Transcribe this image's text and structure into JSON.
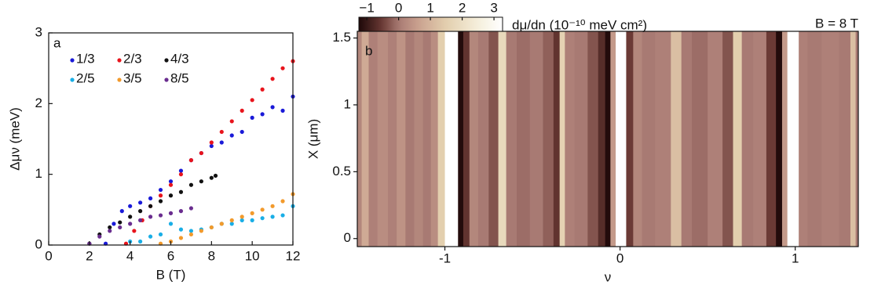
{
  "chart_data": [
    {
      "type": "scatter",
      "panel_label": "a",
      "x_label": "B (T)",
      "y_label": "Δμν (meV)",
      "xlim": [
        0,
        12
      ],
      "ylim": [
        0,
        3
      ],
      "xticks": [
        0,
        2,
        4,
        6,
        8,
        10,
        12
      ],
      "yticks": [
        0,
        1,
        2,
        3
      ],
      "series": [
        {
          "name": "1/3",
          "color": "#1a1ad8",
          "x": [
            2.8,
            3.2,
            3.6,
            4,
            4.5,
            5,
            5.5,
            6,
            6.5,
            7,
            7.5,
            8,
            8.5,
            9,
            9.5,
            10,
            10.5,
            11,
            11.5,
            12
          ],
          "values": [
            0.02,
            0.3,
            0.48,
            0.55,
            0.6,
            0.66,
            0.78,
            0.9,
            1.05,
            1.2,
            1.3,
            1.4,
            1.45,
            1.55,
            1.6,
            1.8,
            1.85,
            1.95,
            1.9,
            2.1
          ]
        },
        {
          "name": "2/3",
          "color": "#e8141c",
          "x": [
            3.8,
            4.2,
            4.6,
            5,
            5.5,
            6,
            6.5,
            7,
            7.5,
            8,
            8.5,
            9,
            9.5,
            10,
            10.5,
            11,
            11.5,
            12
          ],
          "values": [
            0.02,
            0.2,
            0.35,
            0.55,
            0.7,
            0.85,
            1.0,
            1.2,
            1.3,
            1.45,
            1.6,
            1.75,
            1.9,
            2.05,
            2.2,
            2.35,
            2.5,
            2.6
          ]
        },
        {
          "name": "4/3",
          "color": "#111111",
          "x": [
            2.0,
            2.5,
            3,
            3.5,
            4,
            4.5,
            5,
            5.5,
            6,
            6.5,
            7,
            7.5,
            8,
            8.2
          ],
          "values": [
            0.02,
            0.15,
            0.25,
            0.32,
            0.4,
            0.48,
            0.55,
            0.62,
            0.7,
            0.75,
            0.85,
            0.9,
            0.95,
            0.98
          ]
        },
        {
          "name": "2/5",
          "color": "#19aee6",
          "x": [
            4,
            4.5,
            5,
            5.5,
            6,
            6.5,
            7,
            7.5,
            8,
            8.5,
            9,
            9.5,
            10,
            10.5,
            11,
            11.5,
            12
          ],
          "values": [
            0.05,
            0.05,
            0.12,
            0.15,
            0.3,
            0.22,
            0.2,
            0.22,
            0.25,
            0.3,
            0.3,
            0.35,
            0.35,
            0.38,
            0.4,
            0.42,
            0.55
          ]
        },
        {
          "name": "3/5",
          "color": "#f29a2c",
          "x": [
            5.5,
            6,
            6.5,
            7,
            7.5,
            8,
            8.5,
            9,
            9.5,
            10,
            10.5,
            11,
            11.5,
            12
          ],
          "values": [
            0.02,
            0.05,
            0.1,
            0.15,
            0.2,
            0.25,
            0.3,
            0.35,
            0.4,
            0.45,
            0.5,
            0.55,
            0.62,
            0.72
          ]
        },
        {
          "name": "8/5",
          "color": "#6a2d8f",
          "x": [
            2,
            2.5,
            3,
            3.5,
            4,
            4.5,
            5,
            5.5,
            6,
            6.5,
            7
          ],
          "values": [
            0.02,
            0.12,
            0.2,
            0.25,
            0.3,
            0.35,
            0.4,
            0.42,
            0.45,
            0.48,
            0.52
          ]
        }
      ]
    },
    {
      "type": "heatmap",
      "panel_label": "b",
      "x_label": "ν",
      "y_label": "X (μm)",
      "annotation": "B = 8 T",
      "colorbar_label": "dμ/dn (10⁻¹⁰ meV cm²)",
      "xlim": [
        -1.5,
        1.36
      ],
      "ylim": [
        -0.06,
        1.55
      ],
      "xticks": [
        -1,
        0,
        1
      ],
      "yticks": [
        0,
        0.5,
        1,
        1.5
      ],
      "clim": [
        -1.25,
        3.27
      ],
      "cticks": [
        {
          "value": -1,
          "label": "−1"
        },
        0,
        1,
        2,
        3
      ],
      "x": [
        -1.5,
        -1.45,
        -1.42,
        -1.35,
        -1.3,
        -1.25,
        -1.2,
        -1.15,
        -1.1,
        -1.06,
        -1.02,
        -0.98,
        -0.94,
        -0.91,
        -0.88,
        -0.84,
        -0.78,
        -0.72,
        -0.67,
        -0.63,
        -0.55,
        -0.48,
        -0.4,
        -0.36,
        -0.33,
        -0.3,
        -0.22,
        -0.15,
        -0.1,
        -0.07,
        -0.04,
        -0.01,
        0.02,
        0.05,
        0.1,
        0.15,
        0.25,
        0.33,
        0.37,
        0.45,
        0.55,
        0.62,
        0.67,
        0.72,
        0.8,
        0.87,
        0.91,
        0.94,
        0.97,
        1.0,
        1.04,
        1.1,
        1.2,
        1.3,
        1.33,
        1.36
      ],
      "values": [
        0.2,
        0.8,
        0.1,
        0.3,
        0.1,
        0.4,
        0.0,
        0.2,
        0.0,
        0.3,
        1.5,
        3.3,
        3.3,
        -1.2,
        -0.6,
        0.2,
        0.0,
        -0.3,
        1.8,
        0.0,
        -0.1,
        0.0,
        -0.2,
        -0.6,
        1.6,
        0.1,
        0.0,
        -0.3,
        -0.7,
        -1.2,
        0.5,
        3.3,
        3.3,
        -0.5,
        0.2,
        0.0,
        0.1,
        1.2,
        0.0,
        -0.1,
        0.1,
        -0.3,
        1.5,
        0.0,
        0.1,
        -0.5,
        -1.2,
        0.5,
        3.3,
        3.3,
        0.1,
        0.0,
        0.1,
        0.0,
        1.2,
        0.0
      ]
    }
  ]
}
